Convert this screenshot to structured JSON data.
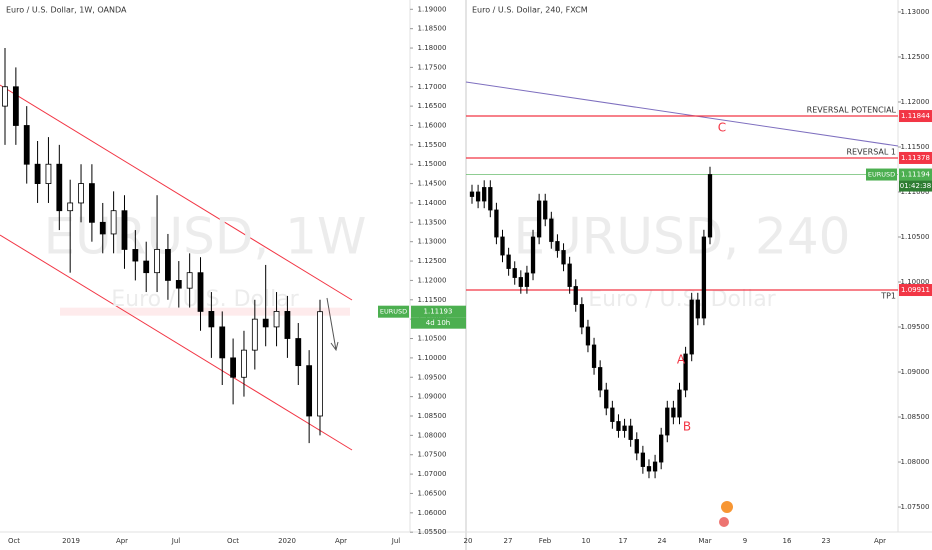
{
  "chart_data": [
    {
      "type": "candlestick",
      "title": "Euro / U.S. Dollar, 1W, OANDA",
      "watermark": "EURUSD, 1W",
      "watermark_sub": "Euro / U.S. Dollar",
      "candles": [
        [
          1.165,
          1.18,
          1.155,
          1.17
        ],
        [
          1.17,
          1.175,
          1.155,
          1.16
        ],
        [
          1.16,
          1.165,
          1.145,
          1.15
        ],
        [
          1.15,
          1.156,
          1.14,
          1.145
        ],
        [
          1.145,
          1.157,
          1.14,
          1.15
        ],
        [
          1.15,
          1.155,
          1.133,
          1.138
        ],
        [
          1.138,
          1.146,
          1.122,
          1.14
        ],
        [
          1.14,
          1.15,
          1.135,
          1.145
        ],
        [
          1.145,
          1.15,
          1.13,
          1.135
        ],
        [
          1.135,
          1.14,
          1.127,
          1.132
        ],
        [
          1.132,
          1.143,
          1.127,
          1.138
        ],
        [
          1.138,
          1.142,
          1.123,
          1.128
        ],
        [
          1.128,
          1.133,
          1.12,
          1.125
        ],
        [
          1.125,
          1.13,
          1.117,
          1.122
        ],
        [
          1.122,
          1.142,
          1.117,
          1.128
        ],
        [
          1.128,
          1.132,
          1.115,
          1.12
        ],
        [
          1.12,
          1.125,
          1.113,
          1.118
        ],
        [
          1.118,
          1.127,
          1.113,
          1.122
        ],
        [
          1.122,
          1.126,
          1.107,
          1.112
        ],
        [
          1.112,
          1.117,
          1.1,
          1.108
        ],
        [
          1.108,
          1.112,
          1.093,
          1.1
        ],
        [
          1.1,
          1.105,
          1.088,
          1.095
        ],
        [
          1.095,
          1.107,
          1.09,
          1.102
        ],
        [
          1.102,
          1.115,
          1.097,
          1.11
        ],
        [
          1.11,
          1.124,
          1.103,
          1.108
        ],
        [
          1.108,
          1.117,
          1.103,
          1.112
        ],
        [
          1.112,
          1.116,
          1.1,
          1.105
        ],
        [
          1.105,
          1.109,
          1.093,
          1.098
        ],
        [
          1.098,
          1.102,
          1.078,
          1.085
        ],
        [
          1.085,
          1.115,
          1.08,
          1.11193
        ]
      ],
      "up_color": "#ffffff",
      "down_color": "#000000",
      "ylim": [
        1.0535,
        1.1924
      ],
      "yticks": [
        {
          "value": 1.055,
          "label": "1.05500"
        },
        {
          "value": 1.06,
          "label": "1.06000"
        },
        {
          "value": 1.065,
          "label": "1.06500"
        },
        {
          "value": 1.07,
          "label": "1.07000"
        },
        {
          "value": 1.075,
          "label": "1.07500"
        },
        {
          "value": 1.08,
          "label": "1.08000"
        },
        {
          "value": 1.085,
          "label": "1.08500"
        },
        {
          "value": 1.09,
          "label": "1.09000"
        },
        {
          "value": 1.095,
          "label": "1.09500"
        },
        {
          "value": 1.1,
          "label": "1.10000"
        },
        {
          "value": 1.105,
          "label": "1.10500"
        },
        {
          "value": 1.11,
          "label": "1.11000"
        },
        {
          "value": 1.115,
          "label": "1.11500"
        },
        {
          "value": 1.12,
          "label": "1.12000"
        },
        {
          "value": 1.125,
          "label": "1.12500"
        },
        {
          "value": 1.13,
          "label": "1.13000"
        },
        {
          "value": 1.135,
          "label": "1.13500"
        },
        {
          "value": 1.14,
          "label": "1.14000"
        },
        {
          "value": 1.145,
          "label": "1.14500"
        },
        {
          "value": 1.15,
          "label": "1.15000"
        },
        {
          "value": 1.155,
          "label": "1.15500"
        },
        {
          "value": 1.16,
          "label": "1.16000"
        },
        {
          "value": 1.165,
          "label": "1.16500"
        },
        {
          "value": 1.17,
          "label": "1.17000"
        },
        {
          "value": 1.175,
          "label": "1.17500"
        },
        {
          "value": 1.18,
          "label": "1.18000"
        },
        {
          "value": 1.185,
          "label": "1.18500"
        },
        {
          "value": 1.19,
          "label": "1.19000"
        }
      ],
      "grid": false,
      "time_labels": [
        "Oct",
        "2019",
        "Apr",
        "Jul",
        "Oct",
        "2020",
        "Apr",
        "Jul"
      ],
      "price_lines": [],
      "current": {
        "name": "EURUSD",
        "value": 1.11193,
        "countdown": "4d 10h",
        "color": "#4caf50"
      },
      "wave_labels": []
    },
    {
      "type": "candlestick",
      "title": "Euro / U.S. Dollar, 240, FXCM",
      "watermark": "EURUSD, 240",
      "watermark_sub": "Euro / U.S. Dollar",
      "candles": [
        [
          1.1095,
          1.1108,
          1.1087,
          1.11
        ],
        [
          1.11,
          1.1108,
          1.1082,
          1.109
        ],
        [
          1.109,
          1.1113,
          1.1082,
          1.1105
        ],
        [
          1.1105,
          1.1113,
          1.1072,
          1.108
        ],
        [
          1.108,
          1.1088,
          1.1042,
          1.105
        ],
        [
          1.105,
          1.1058,
          1.1022,
          1.103
        ],
        [
          1.103,
          1.1038,
          1.1007,
          1.1015
        ],
        [
          1.1015,
          1.1023,
          1.0997,
          1.1005
        ],
        [
          1.1005,
          1.1013,
          1.0987,
          1.0995
        ],
        [
          1.0995,
          1.1018,
          1.0987,
          1.101
        ],
        [
          1.101,
          1.1058,
          1.1002,
          1.105
        ],
        [
          1.105,
          1.1098,
          1.1042,
          1.109
        ],
        [
          1.109,
          1.1098,
          1.1062,
          1.107
        ],
        [
          1.107,
          1.1078,
          1.1037,
          1.1045
        ],
        [
          1.1045,
          1.1053,
          1.1027,
          1.1035
        ],
        [
          1.1035,
          1.1043,
          1.1012,
          1.102
        ],
        [
          1.102,
          1.1028,
          1.0987,
          1.0995
        ],
        [
          1.0995,
          1.1003,
          1.0967,
          1.0975
        ],
        [
          1.0975,
          1.0983,
          1.0942,
          1.095
        ],
        [
          1.095,
          1.0958,
          1.0922,
          1.093
        ],
        [
          1.093,
          1.0938,
          1.0897,
          1.0905
        ],
        [
          1.0905,
          1.0913,
          1.0872,
          1.088
        ],
        [
          1.088,
          1.0888,
          1.0852,
          1.086
        ],
        [
          1.086,
          1.0868,
          1.0837,
          1.0845
        ],
        [
          1.0845,
          1.0853,
          1.0827,
          1.0835
        ],
        [
          1.0835,
          1.0848,
          1.0827,
          1.084
        ],
        [
          1.084,
          1.0848,
          1.0817,
          1.0825
        ],
        [
          1.0825,
          1.0833,
          1.0802,
          1.081
        ],
        [
          1.081,
          1.0818,
          1.0787,
          1.0795
        ],
        [
          1.0795,
          1.0803,
          1.0782,
          1.079
        ],
        [
          1.079,
          1.0808,
          1.0782,
          1.08
        ],
        [
          1.08,
          1.0838,
          1.0792,
          1.083
        ],
        [
          1.083,
          1.0868,
          1.0822,
          1.086
        ],
        [
          1.086,
          1.0868,
          1.0842,
          1.085
        ],
        [
          1.085,
          1.0888,
          1.0842,
          1.088
        ],
        [
          1.088,
          1.0928,
          1.0872,
          1.092
        ],
        [
          1.092,
          1.0988,
          1.0912,
          1.098
        ],
        [
          1.098,
          1.0988,
          1.0952,
          1.096
        ],
        [
          1.096,
          1.1058,
          1.0952,
          1.105
        ],
        [
          1.105,
          1.1128,
          1.1042,
          1.11194
        ]
      ],
      "up_color": "#000000",
      "down_color": "#000000",
      "ylim": [
        1.07156,
        1.13133
      ],
      "yticks": [
        {
          "value": 1.075,
          "label": "1.07500"
        },
        {
          "value": 1.08,
          "label": "1.08000"
        },
        {
          "value": 1.085,
          "label": "1.08500"
        },
        {
          "value": 1.09,
          "label": "1.09000"
        },
        {
          "value": 1.095,
          "label": "1.09500"
        },
        {
          "value": 1.1,
          "label": "1.10000"
        },
        {
          "value": 1.105,
          "label": "1.10500"
        },
        {
          "value": 1.11,
          "label": "1.11000"
        },
        {
          "value": 1.115,
          "label": "1.11500"
        },
        {
          "value": 1.12,
          "label": "1.12000"
        },
        {
          "value": 1.125,
          "label": "1.12500"
        },
        {
          "value": 1.13,
          "label": "1.13000"
        }
      ],
      "grid": false,
      "time_labels": [
        "20",
        "27",
        "Feb",
        "10",
        "17",
        "24",
        "Mar",
        "9",
        "16",
        "23",
        "Apr"
      ],
      "price_lines": [
        {
          "label": "REVERSAL POTENCIAL",
          "value": 1.11844,
          "color": "#f23645"
        },
        {
          "label": "REVERSAL 1",
          "value": 1.11378,
          "color": "#f23645"
        },
        {
          "label": "TP1",
          "value": 1.09911,
          "color": "#f23645"
        }
      ],
      "current": {
        "name": "EURUSD",
        "value": 1.11194,
        "countdown": "01:42:38",
        "color": "#4caf50"
      },
      "wave_labels": [
        "C",
        "A",
        "B"
      ]
    }
  ]
}
